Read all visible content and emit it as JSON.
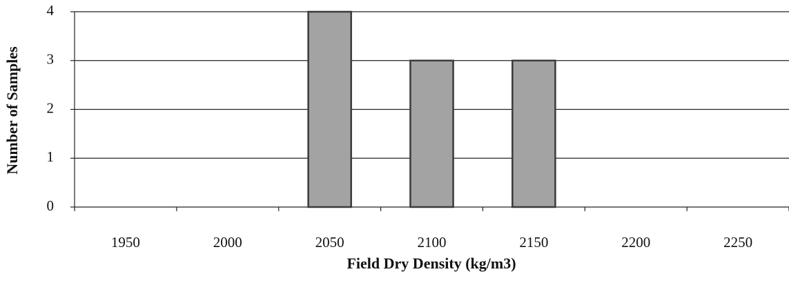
{
  "chart_data": {
    "type": "bar",
    "xlabel": "Field Dry Density (kg/m3)",
    "ylabel": "Number of Samples",
    "categories": [
      "1950",
      "2000",
      "2050",
      "2100",
      "2150",
      "2200",
      "2250"
    ],
    "values": [
      0,
      0,
      4,
      3,
      3,
      0,
      0
    ],
    "color": "#a3a3a3",
    "ylim": [
      0,
      4
    ],
    "yticks": [
      0,
      1,
      2,
      3,
      4
    ],
    "grid": true
  }
}
